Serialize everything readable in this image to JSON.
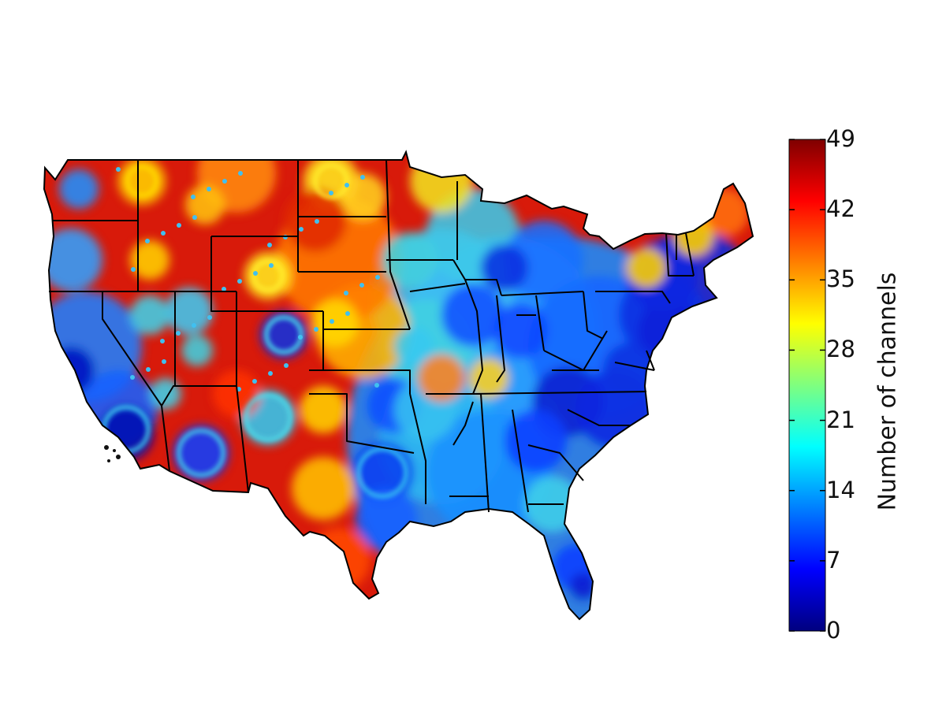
{
  "colorbar": {
    "label": "Number of channels",
    "ticks": [
      "0",
      "7",
      "14",
      "21",
      "28",
      "35",
      "42",
      "49"
    ],
    "range": [
      0,
      49
    ],
    "colormap": "jet",
    "stops": [
      "#00007f",
      "#0000ff",
      "#007fff",
      "#00ffff",
      "#7fff7f",
      "#ffff00",
      "#ff7f00",
      "#ff0000",
      "#7f0000"
    ]
  },
  "map": {
    "region": "Contiguous United States",
    "state_borders": "black",
    "pattern": "western plains mostly red (high), urban centers and the east mostly blue (low)"
  }
}
